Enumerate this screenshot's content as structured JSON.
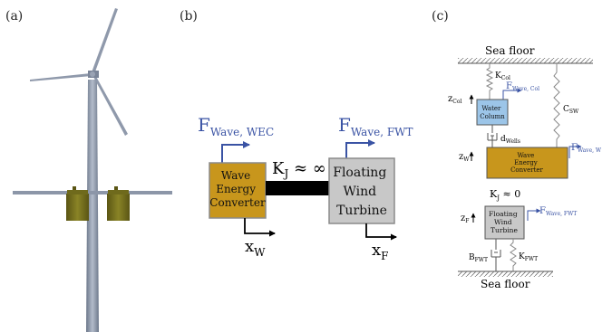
{
  "panels": {
    "a": {
      "label": "(a)"
    },
    "b": {
      "label": "(b)",
      "wec_force_main": "F",
      "wec_force_sub": "Wave, WEC",
      "wec_box": [
        "Wave",
        "Energy",
        "Converter"
      ],
      "coupling_main": "K",
      "coupling_sub": "J",
      "coupling_rest": " ≈ ∞",
      "fwt_force_main": "F",
      "fwt_force_sub": "Wave, FWT",
      "fwt_box": [
        "Floating",
        "Wind",
        "Turbine"
      ],
      "xw_main": "x",
      "xw_sub": "W",
      "xf_main": "x",
      "xf_sub": "F"
    },
    "c": {
      "label": "(c)",
      "sea_floor_top": "Sea floor",
      "sea_floor_bottom": "Sea floor",
      "kcol_main": "K",
      "kcol_sub": "Col",
      "fcol_main": "F",
      "fcol_sub": "Wave, Col",
      "zcol_main": "z",
      "zcol_sub": "Col",
      "water_column_box": [
        "Water",
        "Column"
      ],
      "csw_main": "C",
      "csw_sub": "SW",
      "dwells_main": "d",
      "dwells_sub": "Wells",
      "zw_main": "z",
      "zw_sub": "W",
      "fw_main": "F",
      "fw_sub": "Wave, W",
      "wec_box": [
        "Wave",
        "Energy",
        "Converter"
      ],
      "kj_main": "K",
      "kj_sub": "J",
      "kj_rest": " ≈ 0",
      "zf_main": "z",
      "zf_sub": "F",
      "fwt_box": [
        "Floating",
        "Wind",
        "Turbine"
      ],
      "ffwt_main": "F",
      "ffwt_sub": "Wave, FWT",
      "bfwt_main": "B",
      "bfwt_sub": "FWT",
      "kfwt_main": "K",
      "kfwt_sub": "FWT"
    }
  },
  "colors": {
    "wec_fill": "#c8961c",
    "fwt_fill": "#c8c8c8",
    "water_column_fill": "#9cc5e8",
    "force_blue": "#3a53a4",
    "tower_gray": "#8a95a8",
    "float_olive": "#6f6a1c"
  }
}
